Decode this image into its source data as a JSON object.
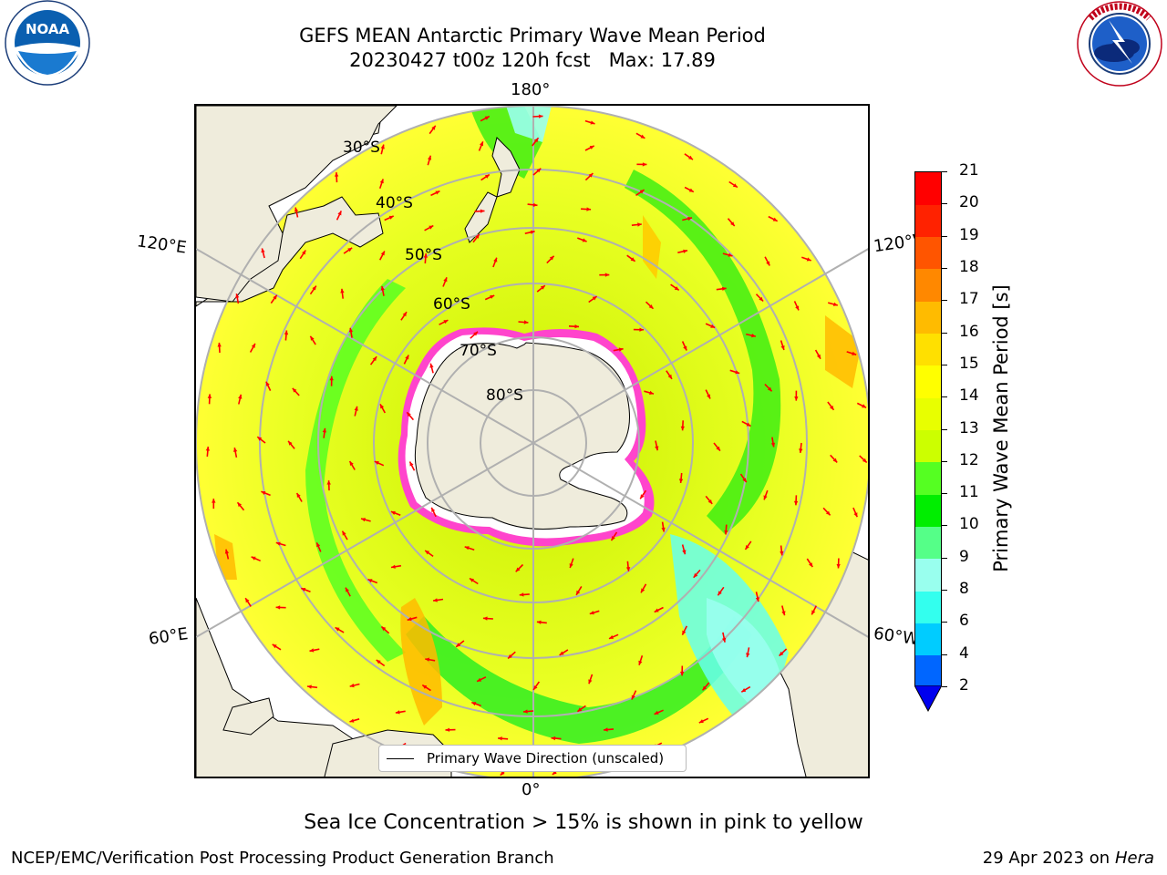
{
  "title": {
    "line1": "GEFS MEAN Antarctic Primary Wave Mean Period",
    "line2": "20230427 t00z 120h fcst   Max: 17.89"
  },
  "logos": {
    "left": {
      "name": "noaa-logo",
      "text": "NOAA",
      "ring_text": "NATIONAL OCEANIC AND ATMOSPHERIC ADMINISTRATION · U.S. DEPARTMENT OF COMMERCE"
    },
    "right": {
      "name": "nws-logo",
      "ring_text": "NATIONAL WEATHER SERVICE"
    }
  },
  "map": {
    "projection": "south polar stereographic",
    "lon_labels": {
      "top": "180°",
      "bottom": "0°",
      "left_upper": "120°E",
      "left_lower": "60°E",
      "right_upper": "120°W",
      "right_lower": "60°W"
    },
    "lat_labels": [
      "30°S",
      "40°S",
      "50°S",
      "60°S",
      "70°S",
      "80°S"
    ],
    "colors": {
      "land": "#efecdc",
      "ocean_bg": "#ffffff",
      "ice_pink": "#ff33cc",
      "arrow": "#ff0000",
      "grid": "#b0b0b0"
    }
  },
  "legend": {
    "label": "Primary Wave Direction (unscaled)"
  },
  "colorbar": {
    "label": "Primary Wave Mean Period [s]",
    "ticks": [
      "21",
      "20",
      "19",
      "18",
      "17",
      "16",
      "15",
      "14",
      "13",
      "12",
      "11",
      "10",
      "9",
      "8",
      "6",
      "4",
      "2"
    ],
    "colors_bottom_to_top": [
      "#0066ff",
      "#00ccff",
      "#33ffee",
      "#99ffee",
      "#55ff88",
      "#00ee00",
      "#55ff22",
      "#ccff00",
      "#e8ff00",
      "#ffff00",
      "#ffe000",
      "#ffbb00",
      "#ff8800",
      "#ff5500",
      "#ff2200",
      "#ff0000"
    ],
    "extend_min_color": "#0000ee"
  },
  "caption": "Sea Ice Concentration > 15% is shown in pink to yellow",
  "footer": {
    "left": "NCEP/EMC/Verification Post Processing Product Generation Branch",
    "right_prefix": "29 Apr 2023 on ",
    "right_host": "Hera"
  }
}
